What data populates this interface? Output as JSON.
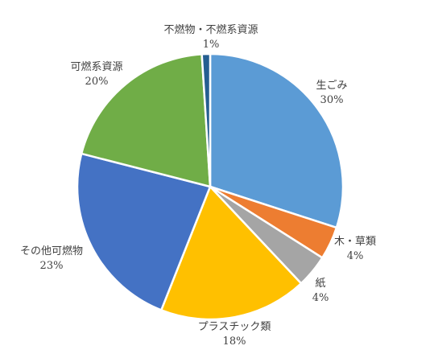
{
  "chart_data": {
    "type": "pie",
    "title": "",
    "start_angle_deg": 0,
    "direction": "clockwise",
    "legend": "none",
    "slices": [
      {
        "label": "生ごみ",
        "value": 30,
        "value_label": "30%",
        "color": "#5B9BD5"
      },
      {
        "label": "木・草類",
        "value": 4,
        "value_label": "4%",
        "color": "#ED7D31"
      },
      {
        "label": "紙",
        "value": 4,
        "value_label": "4%",
        "color": "#A5A5A5"
      },
      {
        "label": "プラスチック類",
        "value": 18,
        "value_label": "18%",
        "color": "#FFC000"
      },
      {
        "label": "その他可燃物",
        "value": 23,
        "value_label": "23%",
        "color": "#4472C4"
      },
      {
        "label": "可燃系資源",
        "value": 20,
        "value_label": "20%",
        "color": "#70AD47"
      },
      {
        "label": "不燃物・不燃系資源",
        "value": 1,
        "value_label": "1%",
        "color": "#255E91"
      }
    ]
  }
}
